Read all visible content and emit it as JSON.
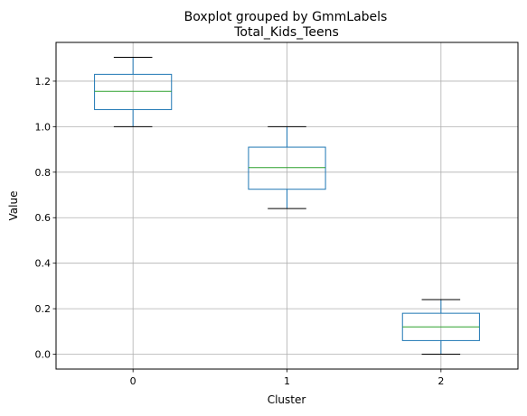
{
  "chart_data": {
    "type": "boxplot",
    "suptitle": "Boxplot grouped by GmmLabels",
    "title": "Total_Kids_Teens",
    "xlabel": "Cluster",
    "ylabel": "Value",
    "categories": [
      "0",
      "1",
      "2"
    ],
    "boxes": [
      {
        "category": "0",
        "whisker_low": 1.0,
        "q1": 1.075,
        "median": 1.155,
        "q3": 1.23,
        "whisker_high": 1.305
      },
      {
        "category": "1",
        "whisker_low": 0.64,
        "q1": 0.725,
        "median": 0.82,
        "q3": 0.91,
        "whisker_high": 1.0
      },
      {
        "category": "2",
        "whisker_low": 0.0,
        "q1": 0.06,
        "median": 0.12,
        "q3": 0.18,
        "whisker_high": 0.24
      }
    ],
    "ylim": [
      -0.0653,
      1.3703
    ],
    "yticks": [
      0.0,
      0.2,
      0.4,
      0.6,
      0.8,
      1.0,
      1.2
    ],
    "ytick_labels": [
      "0.0",
      "0.2",
      "0.4",
      "0.6",
      "0.8",
      "1.0",
      "1.2"
    ],
    "grid": true,
    "colors": {
      "box": "#1f77b4",
      "median": "#2ca02c",
      "whisker": "#000000",
      "grid": "#b0b0b0"
    }
  }
}
